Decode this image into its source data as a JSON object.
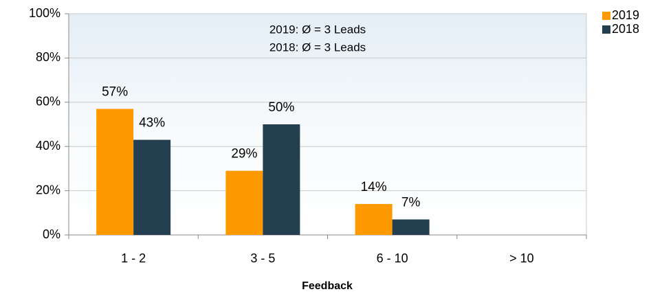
{
  "chart_data": {
    "type": "bar",
    "x_label": "Feedback",
    "annotations": [
      "2019: Ø = 3 Leads",
      "2018: Ø = 3 Leads"
    ],
    "categories": [
      "1 - 2",
      "3 - 5",
      "6 - 10",
      "> 10"
    ],
    "series": [
      {
        "name": "2019",
        "color": "#ff9900",
        "values": [
          57,
          29,
          14,
          null
        ],
        "value_labels": [
          "57%",
          "29%",
          "14%",
          null
        ]
      },
      {
        "name": "2018",
        "color": "#243f50",
        "values": [
          43,
          50,
          7,
          null
        ],
        "value_labels": [
          "43%",
          "50%",
          "7%",
          null
        ]
      }
    ],
    "ylim": [
      0,
      100
    ],
    "yticks": [
      {
        "value": 0,
        "label": "0%"
      },
      {
        "value": 20,
        "label": "20%"
      },
      {
        "value": 40,
        "label": "40%"
      },
      {
        "value": 60,
        "label": "60%"
      },
      {
        "value": 80,
        "label": "80%"
      },
      {
        "value": 100,
        "label": "100%"
      }
    ],
    "grid": true,
    "legend": "top-right"
  }
}
